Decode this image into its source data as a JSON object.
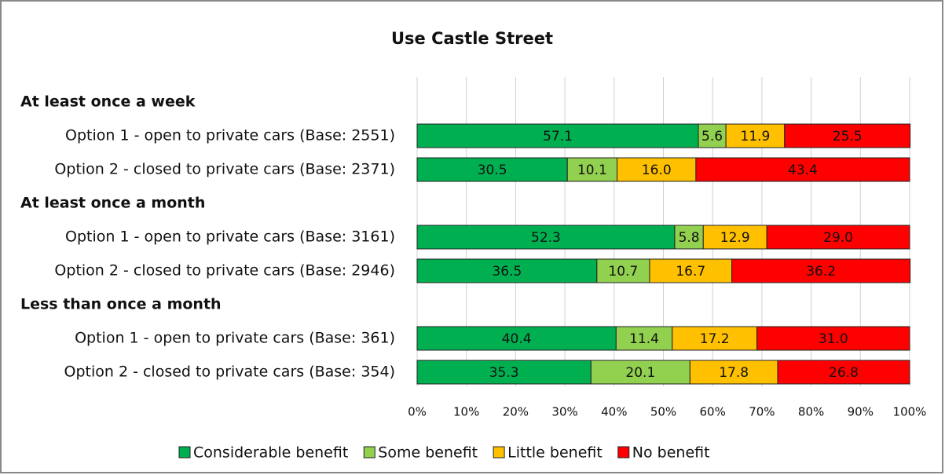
{
  "chart_data": {
    "type": "stacked-bar-horizontal",
    "title": "Use Castle Street",
    "categories": [
      "At least once a week",
      "Option 1  - open to private cars (Base: 2551)",
      "Option 2 - closed to private cars (Base: 2371)",
      "At least once a month",
      "Option 1  - open to private cars (Base: 3161)",
      "Option 2 - closed to private cars (Base: 2946)",
      "Less than once a month",
      "Option 1  - open to private cars (Base: 361)",
      "Option 2 - closed to private cars (Base: 354)"
    ],
    "series": [
      {
        "name": "Considerable benefit",
        "color": "#00b050",
        "values": [
          null,
          57.1,
          30.5,
          null,
          52.3,
          36.5,
          null,
          40.4,
          35.3
        ],
        "value_labels": [
          null,
          "57.1",
          "30.5",
          null,
          "52.3",
          "36.5",
          null,
          "40.4",
          "35.3"
        ]
      },
      {
        "name": "Some benefit",
        "color": "#92d050",
        "values": [
          null,
          5.6,
          10.1,
          null,
          5.8,
          10.7,
          null,
          11.4,
          20.1
        ],
        "value_labels": [
          null,
          "5.6",
          "10.1",
          null,
          "5.8",
          "10.7",
          null,
          "11.4",
          "20.1"
        ]
      },
      {
        "name": "Little benefit",
        "color": "#ffc000",
        "values": [
          null,
          11.9,
          16.0,
          null,
          12.9,
          16.7,
          null,
          17.2,
          17.8
        ],
        "value_labels": [
          null,
          "11.9",
          "16.0",
          null,
          "12.9",
          "16.7",
          null,
          "17.2",
          "17.8"
        ]
      },
      {
        "name": "No benefit",
        "color": "#ff0000",
        "values": [
          null,
          25.5,
          43.4,
          null,
          29.0,
          36.2,
          null,
          31.0,
          26.8
        ],
        "value_labels": [
          null,
          "25.5",
          "43.4",
          null,
          "29.0",
          "36.2",
          null,
          "31.0",
          "26.8"
        ]
      }
    ],
    "xlim": [
      0,
      100
    ],
    "xticks": [
      {
        "value": 0,
        "label": "0%"
      },
      {
        "value": 10,
        "label": "10%"
      },
      {
        "value": 20,
        "label": "20%"
      },
      {
        "value": 30,
        "label": "30%"
      },
      {
        "value": 40,
        "label": "40%"
      },
      {
        "value": 50,
        "label": "50%"
      },
      {
        "value": 60,
        "label": "60%"
      },
      {
        "value": 70,
        "label": "70%"
      },
      {
        "value": 80,
        "label": "80%"
      },
      {
        "value": 90,
        "label": "90%"
      },
      {
        "value": 100,
        "label": "100%"
      }
    ],
    "grid": true,
    "legend": "bottom"
  }
}
